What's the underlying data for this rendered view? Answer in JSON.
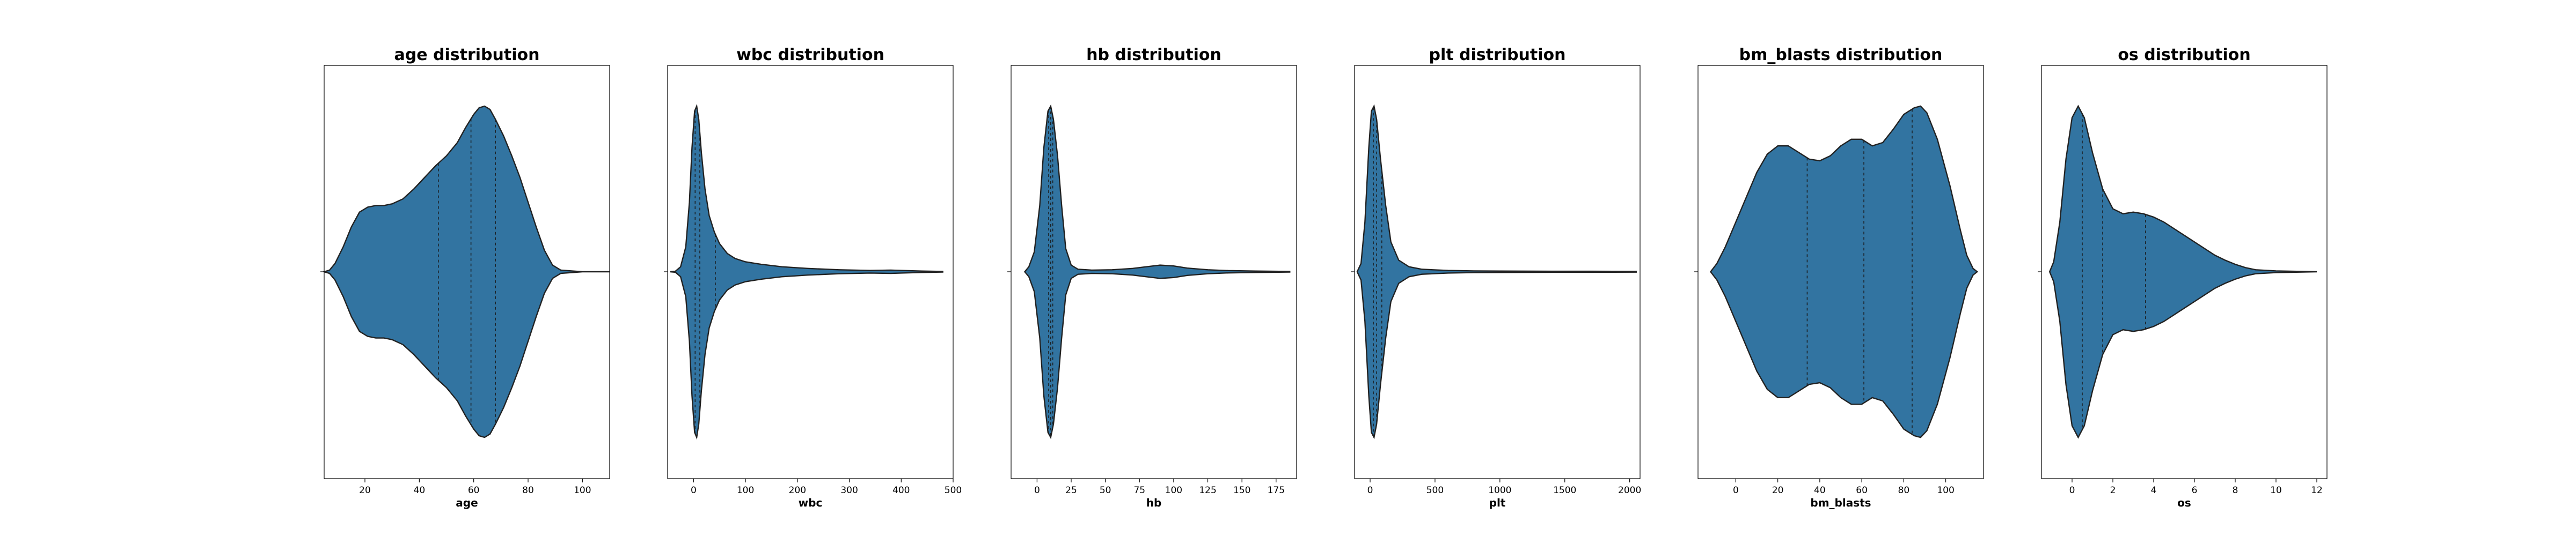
{
  "chart_data": [
    {
      "type": "violin",
      "title": "age distribution",
      "xlabel": "age",
      "xlim": [
        5,
        110
      ],
      "xticks": [
        20,
        40,
        60,
        80,
        100
      ],
      "xtick_labels": [
        "20",
        "40",
        "60",
        "80",
        "100"
      ],
      "quartiles": [
        47,
        59,
        68
      ],
      "color": "#3274a1",
      "density": [
        [
          5,
          0
        ],
        [
          7,
          0.01
        ],
        [
          9,
          0.05
        ],
        [
          12,
          0.15
        ],
        [
          15,
          0.27
        ],
        [
          18,
          0.36
        ],
        [
          21,
          0.39
        ],
        [
          24,
          0.4
        ],
        [
          27,
          0.4
        ],
        [
          30,
          0.41
        ],
        [
          34,
          0.44
        ],
        [
          38,
          0.5
        ],
        [
          42,
          0.57
        ],
        [
          46,
          0.64
        ],
        [
          50,
          0.7
        ],
        [
          54,
          0.78
        ],
        [
          57,
          0.87
        ],
        [
          60,
          0.95
        ],
        [
          62,
          0.99
        ],
        [
          64,
          1
        ],
        [
          66,
          0.98
        ],
        [
          68,
          0.92
        ],
        [
          71,
          0.82
        ],
        [
          74,
          0.7
        ],
        [
          77,
          0.57
        ],
        [
          80,
          0.42
        ],
        [
          83,
          0.27
        ],
        [
          86,
          0.13
        ],
        [
          89,
          0.04
        ],
        [
          92,
          0.01
        ],
        [
          100,
          0
        ],
        [
          110,
          0
        ]
      ]
    },
    {
      "type": "violin",
      "title": "wbc distribution",
      "xlabel": "wbc",
      "xlim": [
        -50,
        500
      ],
      "xticks": [
        0,
        100,
        200,
        300,
        400,
        500
      ],
      "xtick_labels": [
        "0",
        "100",
        "200",
        "300",
        "400",
        "500"
      ],
      "quartiles": [
        3,
        12,
        42
      ],
      "color": "#3274a1",
      "density": [
        [
          -45,
          0
        ],
        [
          -35,
          0.003
        ],
        [
          -25,
          0.03
        ],
        [
          -15,
          0.15
        ],
        [
          -8,
          0.42
        ],
        [
          -3,
          0.75
        ],
        [
          2,
          0.97
        ],
        [
          6,
          1
        ],
        [
          10,
          0.92
        ],
        [
          15,
          0.72
        ],
        [
          22,
          0.5
        ],
        [
          30,
          0.34
        ],
        [
          40,
          0.24
        ],
        [
          50,
          0.17
        ],
        [
          65,
          0.11
        ],
        [
          80,
          0.08
        ],
        [
          100,
          0.06
        ],
        [
          130,
          0.045
        ],
        [
          170,
          0.03
        ],
        [
          220,
          0.02
        ],
        [
          280,
          0.012
        ],
        [
          340,
          0.008
        ],
        [
          380,
          0.01
        ],
        [
          400,
          0.008
        ],
        [
          440,
          0.004
        ],
        [
          480,
          0.002
        ]
      ]
    },
    {
      "type": "violin",
      "title": "hb distribution",
      "xlabel": "hb",
      "xlim": [
        -19,
        190
      ],
      "xticks": [
        0,
        25,
        50,
        75,
        100,
        125,
        150,
        175
      ],
      "xtick_labels": [
        "0",
        "25",
        "50",
        "75",
        "100",
        "125",
        "150",
        "175"
      ],
      "quartiles": [
        8.5,
        10,
        11.5
      ],
      "color": "#3274a1",
      "density": [
        [
          -9,
          0
        ],
        [
          -6,
          0.03
        ],
        [
          -2,
          0.12
        ],
        [
          2,
          0.4
        ],
        [
          5,
          0.75
        ],
        [
          8,
          0.97
        ],
        [
          10,
          1
        ],
        [
          12,
          0.92
        ],
        [
          15,
          0.7
        ],
        [
          18,
          0.4
        ],
        [
          21,
          0.14
        ],
        [
          25,
          0.04
        ],
        [
          30,
          0.015
        ],
        [
          40,
          0.01
        ],
        [
          55,
          0.012
        ],
        [
          70,
          0.02
        ],
        [
          80,
          0.03
        ],
        [
          90,
          0.04
        ],
        [
          100,
          0.035
        ],
        [
          110,
          0.022
        ],
        [
          125,
          0.012
        ],
        [
          140,
          0.007
        ],
        [
          160,
          0.004
        ],
        [
          185,
          0.002
        ]
      ]
    },
    {
      "type": "violin",
      "title": "plt distribution",
      "xlabel": "plt",
      "xlim": [
        -120,
        2080
      ],
      "xticks": [
        0,
        500,
        1000,
        1500,
        2000
      ],
      "xtick_labels": [
        "0",
        "500",
        "1000",
        "1500",
        "2000"
      ],
      "quartiles": [
        25,
        50,
        90
      ],
      "color": "#3274a1",
      "density": [
        [
          -100,
          0
        ],
        [
          -70,
          0.05
        ],
        [
          -40,
          0.3
        ],
        [
          -10,
          0.75
        ],
        [
          10,
          0.97
        ],
        [
          30,
          1
        ],
        [
          50,
          0.92
        ],
        [
          80,
          0.68
        ],
        [
          120,
          0.4
        ],
        [
          160,
          0.18
        ],
        [
          220,
          0.07
        ],
        [
          300,
          0.03
        ],
        [
          400,
          0.015
        ],
        [
          600,
          0.008
        ],
        [
          800,
          0.005
        ],
        [
          1000,
          0.004
        ],
        [
          1400,
          0.003
        ],
        [
          1700,
          0.003
        ],
        [
          2050,
          0.002
        ]
      ]
    },
    {
      "type": "violin",
      "title": "bm_blasts distribution",
      "xlabel": "bm_blasts",
      "xlim": [
        -18,
        118
      ],
      "xticks": [
        0,
        20,
        40,
        60,
        80,
        100
      ],
      "xtick_labels": [
        "0",
        "20",
        "40",
        "60",
        "80",
        "100"
      ],
      "quartiles": [
        34,
        61,
        84
      ],
      "color": "#3274a1",
      "density": [
        [
          -12,
          0
        ],
        [
          -9,
          0.05
        ],
        [
          -5,
          0.15
        ],
        [
          0,
          0.3
        ],
        [
          5,
          0.45
        ],
        [
          10,
          0.6
        ],
        [
          15,
          0.71
        ],
        [
          20,
          0.76
        ],
        [
          25,
          0.76
        ],
        [
          30,
          0.72
        ],
        [
          35,
          0.68
        ],
        [
          40,
          0.67
        ],
        [
          45,
          0.7
        ],
        [
          50,
          0.76
        ],
        [
          55,
          0.8
        ],
        [
          60,
          0.8
        ],
        [
          65,
          0.76
        ],
        [
          70,
          0.78
        ],
        [
          75,
          0.86
        ],
        [
          80,
          0.95
        ],
        [
          85,
          0.99
        ],
        [
          88,
          1
        ],
        [
          91,
          0.96
        ],
        [
          96,
          0.8
        ],
        [
          102,
          0.52
        ],
        [
          107,
          0.25
        ],
        [
          110,
          0.1
        ],
        [
          113,
          0.02
        ],
        [
          115,
          0
        ]
      ]
    },
    {
      "type": "violin",
      "title": "os distribution",
      "xlabel": "os",
      "xlim": [
        -1.5,
        12.5
      ],
      "xticks": [
        0,
        2,
        4,
        6,
        8,
        10,
        12
      ],
      "xtick_labels": [
        "0",
        "2",
        "4",
        "6",
        "8",
        "10",
        "12"
      ],
      "quartiles": [
        0.5,
        1.5,
        3.6
      ],
      "color": "#3274a1",
      "density": [
        [
          -1.1,
          0
        ],
        [
          -0.9,
          0.06
        ],
        [
          -0.6,
          0.3
        ],
        [
          -0.3,
          0.68
        ],
        [
          0,
          0.93
        ],
        [
          0.3,
          1
        ],
        [
          0.6,
          0.93
        ],
        [
          1,
          0.72
        ],
        [
          1.5,
          0.5
        ],
        [
          2,
          0.38
        ],
        [
          2.5,
          0.35
        ],
        [
          3,
          0.36
        ],
        [
          3.5,
          0.35
        ],
        [
          4,
          0.33
        ],
        [
          4.5,
          0.3
        ],
        [
          5,
          0.26
        ],
        [
          5.5,
          0.22
        ],
        [
          6,
          0.18
        ],
        [
          6.5,
          0.14
        ],
        [
          7,
          0.1
        ],
        [
          7.5,
          0.07
        ],
        [
          8,
          0.045
        ],
        [
          8.5,
          0.025
        ],
        [
          9,
          0.012
        ],
        [
          10,
          0.005
        ],
        [
          12,
          0
        ]
      ]
    }
  ]
}
